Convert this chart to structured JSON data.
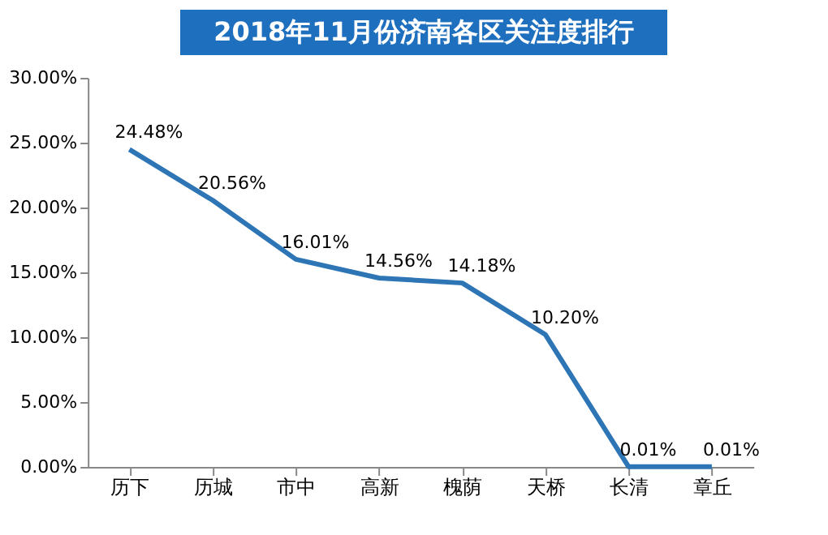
{
  "chart_data": {
    "type": "line",
    "title": "2018年11月份济南各区关注度排行",
    "categories": [
      "历下",
      "历城",
      "市中",
      "高新",
      "槐荫",
      "天桥",
      "长清",
      "章丘"
    ],
    "values": [
      24.48,
      20.56,
      16.01,
      14.56,
      14.18,
      10.2,
      0.01,
      0.01
    ],
    "value_labels": [
      "24.48%",
      "20.56%",
      "16.01%",
      "14.56%",
      "14.18%",
      "10.20%",
      "0.01%",
      "0.01%"
    ],
    "color": "#2e75b6",
    "ylim": [
      0,
      30
    ],
    "yticks": [
      {
        "value": 0,
        "label": "0.00%"
      },
      {
        "value": 5,
        "label": "5.00%"
      },
      {
        "value": 10,
        "label": "10.00%"
      },
      {
        "value": 15,
        "label": "15.00%"
      },
      {
        "value": 20,
        "label": "20.00%"
      },
      {
        "value": 25,
        "label": "25.00%"
      },
      {
        "value": 30,
        "label": "30.00%"
      }
    ]
  }
}
